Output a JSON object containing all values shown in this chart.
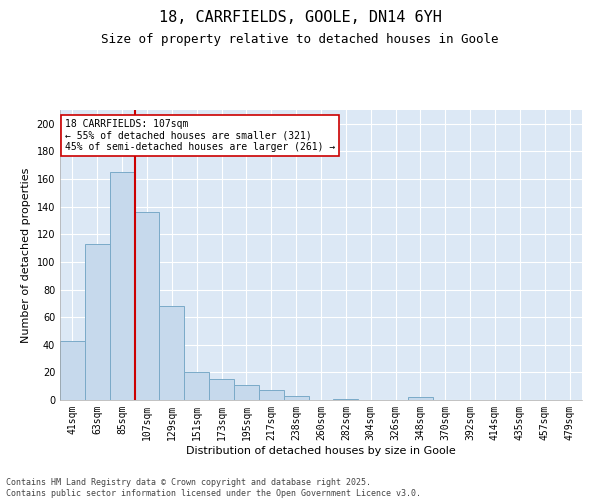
{
  "title": "18, CARRFIELDS, GOOLE, DN14 6YH",
  "subtitle": "Size of property relative to detached houses in Goole",
  "xlabel": "Distribution of detached houses by size in Goole",
  "ylabel": "Number of detached properties",
  "categories": [
    "41sqm",
    "63sqm",
    "85sqm",
    "107sqm",
    "129sqm",
    "151sqm",
    "173sqm",
    "195sqm",
    "217sqm",
    "238sqm",
    "260sqm",
    "282sqm",
    "304sqm",
    "326sqm",
    "348sqm",
    "370sqm",
    "392sqm",
    "414sqm",
    "435sqm",
    "457sqm",
    "479sqm"
  ],
  "values": [
    43,
    113,
    165,
    136,
    68,
    20,
    15,
    11,
    7,
    3,
    0,
    1,
    0,
    0,
    2,
    0,
    0,
    0,
    0,
    0,
    0
  ],
  "bar_color": "#c6d9ec",
  "bar_edgecolor": "#7aaac8",
  "vline_x_index": 3,
  "vline_color": "#cc0000",
  "annotation_text": "18 CARRFIELDS: 107sqm\n← 55% of detached houses are smaller (321)\n45% of semi-detached houses are larger (261) →",
  "annotation_box_edgecolor": "#cc0000",
  "annotation_box_facecolor": "#ffffff",
  "ylim": [
    0,
    210
  ],
  "yticks": [
    0,
    20,
    40,
    60,
    80,
    100,
    120,
    140,
    160,
    180,
    200
  ],
  "bg_color": "#dce8f5",
  "grid_color": "#ffffff",
  "footer": "Contains HM Land Registry data © Crown copyright and database right 2025.\nContains public sector information licensed under the Open Government Licence v3.0.",
  "title_fontsize": 11,
  "subtitle_fontsize": 9,
  "label_fontsize": 8,
  "tick_fontsize": 7,
  "annot_fontsize": 7,
  "footer_fontsize": 6
}
